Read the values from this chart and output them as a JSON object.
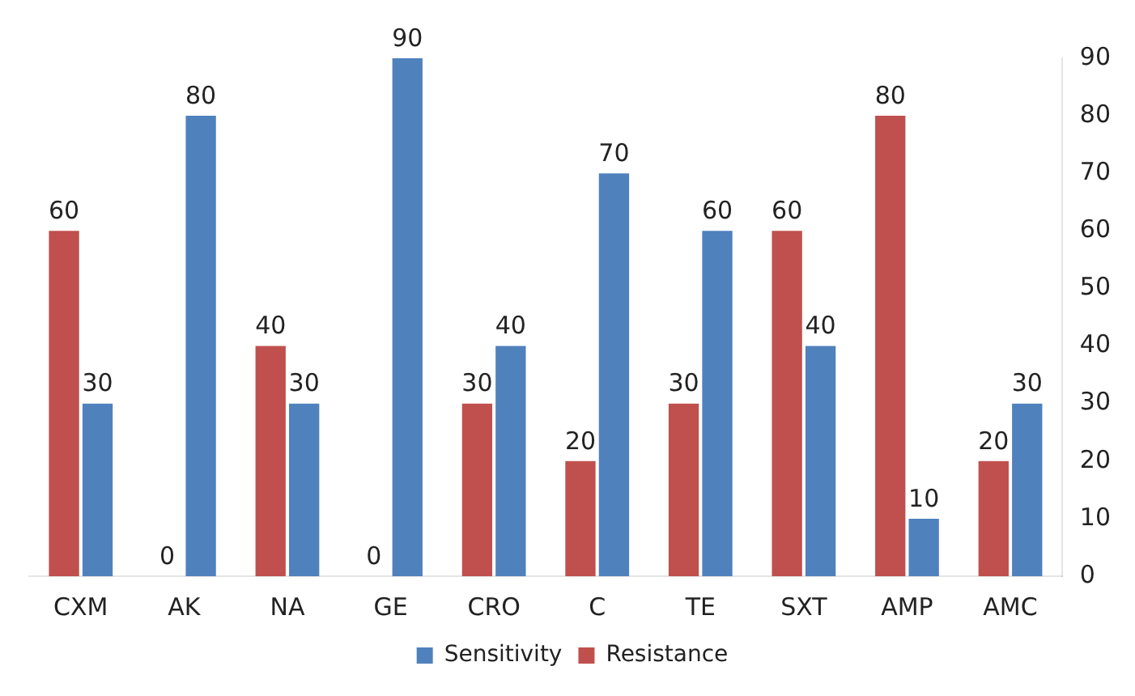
{
  "chart_data": {
    "type": "bar",
    "categories": [
      "CXM",
      "AK",
      "NA",
      "GE",
      "CRO",
      "C",
      "TE",
      "SXT",
      "AMP",
      "AMC"
    ],
    "series": [
      {
        "name": "Resistance",
        "color": "#c0504d",
        "values": [
          60,
          0,
          40,
          0,
          30,
          20,
          30,
          60,
          80,
          20
        ]
      },
      {
        "name": "Sensitivity",
        "color": "#4f81bd",
        "values": [
          30,
          80,
          30,
          90,
          40,
          70,
          60,
          40,
          10,
          30
        ]
      }
    ],
    "ylim": [
      0,
      90
    ],
    "yticks": [
      0,
      10,
      20,
      30,
      40,
      50,
      60,
      70,
      80,
      90
    ],
    "grid": false,
    "legend": "bottom",
    "data_labels": true
  }
}
